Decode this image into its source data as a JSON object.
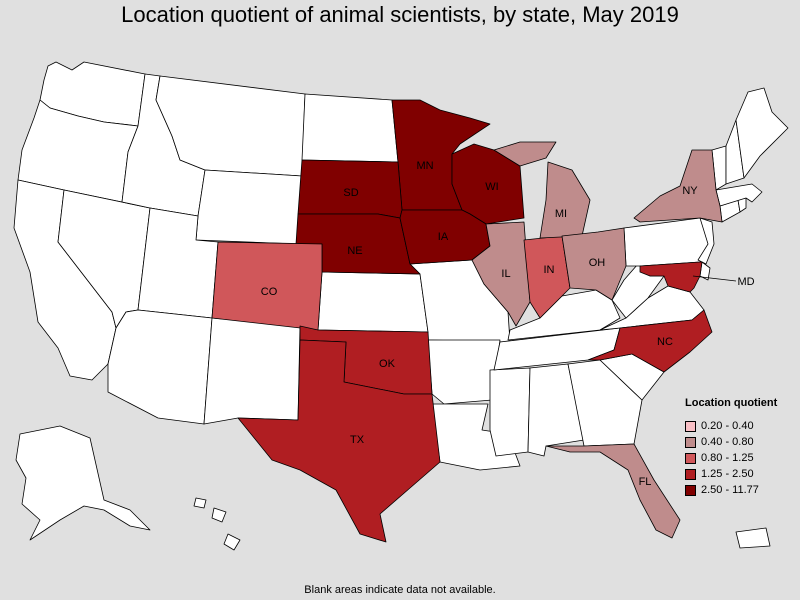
{
  "title": "Location quotient of animal scientists, by state, May 2019",
  "note": "Blank areas indicate data not available.",
  "legend": {
    "title": "Location quotient",
    "items": [
      {
        "label": "0.20 - 0.40",
        "color": "#f9c0c6"
      },
      {
        "label": "0.40 - 0.80",
        "color": "#bf8c8c"
      },
      {
        "label": "0.80 - 1.25",
        "color": "#d0575a"
      },
      {
        "label": "1.25 - 2.50",
        "color": "#b01e22"
      },
      {
        "label": "2.50 - 11.77",
        "color": "#800000"
      }
    ]
  },
  "colors": {
    "background": "#e0e0e0",
    "no_data": "#ffffff",
    "border": "#000000"
  },
  "states": {
    "MN": {
      "label": "MN",
      "class": 4
    },
    "WI": {
      "label": "WI",
      "class": 4
    },
    "SD": {
      "label": "SD",
      "class": 4
    },
    "NE": {
      "label": "NE",
      "class": 4
    },
    "IA": {
      "label": "IA",
      "class": 4
    },
    "TX": {
      "label": "TX",
      "class": 3
    },
    "OK": {
      "label": "OK",
      "class": 3
    },
    "NC": {
      "label": "NC",
      "class": 3
    },
    "MD": {
      "label": "MD",
      "class": 3
    },
    "CO": {
      "label": "CO",
      "class": 2
    },
    "IN": {
      "label": "IN",
      "class": 2
    },
    "IL": {
      "label": "IL",
      "class": 1
    },
    "MI": {
      "label": "MI",
      "class": 1
    },
    "OH": {
      "label": "OH",
      "class": 1
    },
    "NY": {
      "label": "NY",
      "class": 1
    },
    "FL": {
      "label": "FL",
      "class": 1
    }
  }
}
